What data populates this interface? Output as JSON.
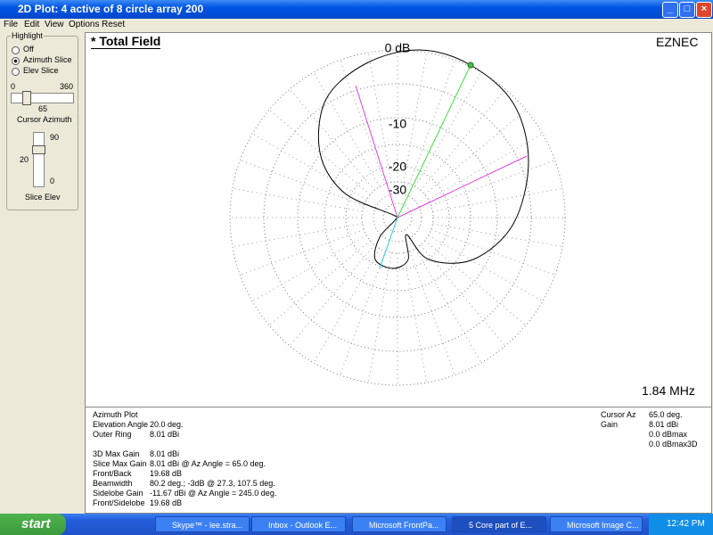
{
  "window": {
    "title": "2D Plot: 4 active of 8 circle array 200"
  },
  "menu": [
    "File",
    "Edit",
    "View",
    "Options",
    "Reset"
  ],
  "highlight": {
    "title": "Highlight",
    "options": [
      "Off",
      "Azimuth Slice",
      "Elev Slice"
    ],
    "az_min": "0",
    "az_max": "360",
    "az_value": "65",
    "az_label": "Cursor Azimuth",
    "elev_max": "90",
    "elev_value": "20",
    "elev_min": "0",
    "elev_label": "Slice Elev"
  },
  "plot": {
    "title": "* Total Field",
    "brand": "EZNEC",
    "frequency": "1.84 MHz",
    "ring_labels": [
      "0 dB",
      "-10",
      "-20",
      "-30"
    ]
  },
  "info": {
    "heading": "Azimuth Plot",
    "rows": [
      [
        "Elevation Angle",
        "20.0 deg."
      ],
      [
        "Outer Ring",
        "8.01 dBi"
      ],
      [
        "3D Max Gain",
        "8.01 dBi"
      ],
      [
        "Slice Max Gain",
        "8.01 dBi @ Az Angle = 65.0 deg."
      ],
      [
        "Front/Back",
        "19.68 dB"
      ],
      [
        "Beamwidth",
        "80.2 deg.; -3dB @ 27.3, 107.5 deg."
      ],
      [
        "Sidelobe Gain",
        "-11.67 dBi @ Az Angle = 245.0 deg."
      ],
      [
        "Front/Sidelobe",
        "19.68 dB"
      ]
    ],
    "cursor": {
      "rows": [
        [
          "Cursor Az",
          "65.0 deg."
        ],
        [
          "Gain",
          "8.01 dBi"
        ]
      ],
      "extra": [
        "0.0 dBmax",
        "0.0 dBmax3D"
      ]
    }
  },
  "taskbar": {
    "start": "start",
    "items": [
      "Skype™ - lee.stra...",
      "Inbox - Outlook E...",
      "Microsoft FrontPa...",
      "5 Core part of E...",
      "Microsoft Image C..."
    ],
    "clock": "12:42 PM"
  }
}
